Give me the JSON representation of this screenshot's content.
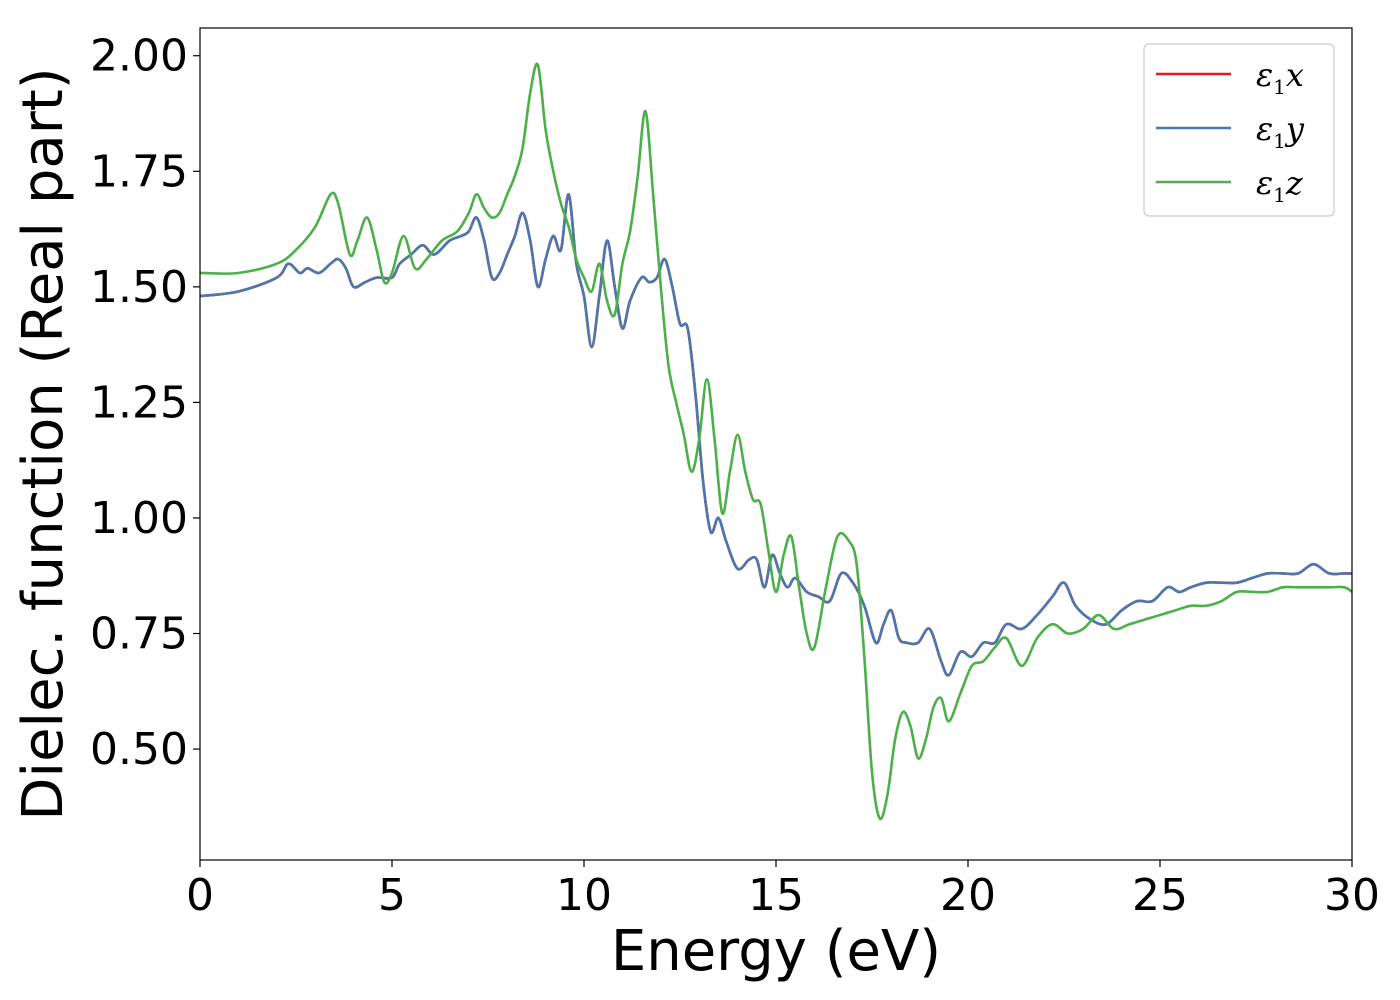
{
  "chart_data": {
    "type": "line",
    "xlabel": "Energy (eV)",
    "ylabel": "Dielec. function (Real part)",
    "xlim": [
      0,
      30
    ],
    "ylim": [
      0.26,
      2.06
    ],
    "xticks": [
      0,
      5,
      10,
      15,
      20,
      25,
      30
    ],
    "xtick_labels": [
      "0",
      "5",
      "10",
      "15",
      "20",
      "25",
      "30"
    ],
    "yticks": [
      0.5,
      0.75,
      1.0,
      1.25,
      1.5,
      1.75,
      2.0
    ],
    "ytick_labels": [
      "0.50",
      "0.75",
      "1.00",
      "1.25",
      "1.50",
      "1.75",
      "2.00"
    ],
    "grid": false,
    "legend": {
      "placement": "top-right",
      "entries": [
        {
          "symbol": "ε",
          "sub": "1",
          "var": "x",
          "color": "#e41a1c"
        },
        {
          "symbol": "ε",
          "sub": "1",
          "var": "y",
          "color": "#4a77b0"
        },
        {
          "symbol": "ε",
          "sub": "1",
          "var": "z",
          "color": "#4daf4a"
        }
      ]
    },
    "series": [
      {
        "color": "#e41a1c",
        "x": [
          0,
          1,
          2,
          2.3,
          2.6,
          2.8,
          3.1,
          3.4,
          3.6,
          3.8,
          4.0,
          4.3,
          4.6,
          5.0,
          5.2,
          5.5,
          5.8,
          6.1,
          6.5,
          6.8,
          7.0,
          7.2,
          7.4,
          7.6,
          7.8,
          8.0,
          8.2,
          8.4,
          8.6,
          8.8,
          9.0,
          9.2,
          9.4,
          9.6,
          9.8,
          10.0,
          10.2,
          10.4,
          10.6,
          10.8,
          11.0,
          11.2,
          11.5,
          11.7,
          11.9,
          12.1,
          12.3,
          12.5,
          12.7,
          12.9,
          13.1,
          13.3,
          13.5,
          13.7,
          14.0,
          14.3,
          14.5,
          14.7,
          14.9,
          15.1,
          15.3,
          15.5,
          15.8,
          16.1,
          16.4,
          16.7,
          17.0,
          17.3,
          17.6,
          17.8,
          18.0,
          18.2,
          18.4,
          18.7,
          19.0,
          19.3,
          19.5,
          19.8,
          20.1,
          20.4,
          20.7,
          21.0,
          21.4,
          21.8,
          22.2,
          22.5,
          22.8,
          23.2,
          23.6,
          24.0,
          24.4,
          24.8,
          25.2,
          25.5,
          25.8,
          26.2,
          26.6,
          27.0,
          27.4,
          27.8,
          28.2,
          28.6,
          29.0,
          29.4,
          29.8,
          30.0
        ],
        "values": [
          1.48,
          1.49,
          1.52,
          1.55,
          1.53,
          1.54,
          1.53,
          1.55,
          1.56,
          1.54,
          1.5,
          1.51,
          1.52,
          1.52,
          1.55,
          1.57,
          1.59,
          1.57,
          1.6,
          1.61,
          1.62,
          1.65,
          1.6,
          1.52,
          1.53,
          1.57,
          1.61,
          1.66,
          1.6,
          1.5,
          1.56,
          1.61,
          1.58,
          1.7,
          1.55,
          1.48,
          1.37,
          1.48,
          1.6,
          1.5,
          1.41,
          1.47,
          1.52,
          1.51,
          1.52,
          1.56,
          1.5,
          1.42,
          1.41,
          1.27,
          1.08,
          0.97,
          1.0,
          0.95,
          0.89,
          0.91,
          0.91,
          0.85,
          0.92,
          0.88,
          0.85,
          0.87,
          0.84,
          0.83,
          0.82,
          0.88,
          0.86,
          0.81,
          0.73,
          0.77,
          0.8,
          0.74,
          0.73,
          0.73,
          0.76,
          0.69,
          0.66,
          0.71,
          0.7,
          0.73,
          0.73,
          0.77,
          0.76,
          0.79,
          0.83,
          0.86,
          0.81,
          0.78,
          0.77,
          0.8,
          0.82,
          0.82,
          0.85,
          0.84,
          0.85,
          0.86,
          0.86,
          0.86,
          0.87,
          0.88,
          0.88,
          0.88,
          0.9,
          0.88,
          0.88,
          0.88
        ]
      },
      {
        "color": "#4a77b0",
        "x": [
          0,
          1,
          2,
          2.3,
          2.6,
          2.8,
          3.1,
          3.4,
          3.6,
          3.8,
          4.0,
          4.3,
          4.6,
          5.0,
          5.2,
          5.5,
          5.8,
          6.1,
          6.5,
          6.8,
          7.0,
          7.2,
          7.4,
          7.6,
          7.8,
          8.0,
          8.2,
          8.4,
          8.6,
          8.8,
          9.0,
          9.2,
          9.4,
          9.6,
          9.8,
          10.0,
          10.2,
          10.4,
          10.6,
          10.8,
          11.0,
          11.2,
          11.5,
          11.7,
          11.9,
          12.1,
          12.3,
          12.5,
          12.7,
          12.9,
          13.1,
          13.3,
          13.5,
          13.7,
          14.0,
          14.3,
          14.5,
          14.7,
          14.9,
          15.1,
          15.3,
          15.5,
          15.8,
          16.1,
          16.4,
          16.7,
          17.0,
          17.3,
          17.6,
          17.8,
          18.0,
          18.2,
          18.4,
          18.7,
          19.0,
          19.3,
          19.5,
          19.8,
          20.1,
          20.4,
          20.7,
          21.0,
          21.4,
          21.8,
          22.2,
          22.5,
          22.8,
          23.2,
          23.6,
          24.0,
          24.4,
          24.8,
          25.2,
          25.5,
          25.8,
          26.2,
          26.6,
          27.0,
          27.4,
          27.8,
          28.2,
          28.6,
          29.0,
          29.4,
          29.8,
          30.0
        ],
        "values": [
          1.48,
          1.49,
          1.52,
          1.55,
          1.53,
          1.54,
          1.53,
          1.55,
          1.56,
          1.54,
          1.5,
          1.51,
          1.52,
          1.52,
          1.55,
          1.57,
          1.59,
          1.57,
          1.6,
          1.61,
          1.62,
          1.65,
          1.6,
          1.52,
          1.53,
          1.57,
          1.61,
          1.66,
          1.6,
          1.5,
          1.56,
          1.61,
          1.58,
          1.7,
          1.55,
          1.48,
          1.37,
          1.48,
          1.6,
          1.5,
          1.41,
          1.47,
          1.52,
          1.51,
          1.52,
          1.56,
          1.5,
          1.42,
          1.41,
          1.27,
          1.08,
          0.97,
          1.0,
          0.95,
          0.89,
          0.91,
          0.91,
          0.85,
          0.92,
          0.88,
          0.85,
          0.87,
          0.84,
          0.83,
          0.82,
          0.88,
          0.86,
          0.81,
          0.73,
          0.77,
          0.8,
          0.74,
          0.73,
          0.73,
          0.76,
          0.69,
          0.66,
          0.71,
          0.7,
          0.73,
          0.73,
          0.77,
          0.76,
          0.79,
          0.83,
          0.86,
          0.81,
          0.78,
          0.77,
          0.8,
          0.82,
          0.82,
          0.85,
          0.84,
          0.85,
          0.86,
          0.86,
          0.86,
          0.87,
          0.88,
          0.88,
          0.88,
          0.9,
          0.88,
          0.88,
          0.88
        ]
      },
      {
        "color": "#4daf4a",
        "x": [
          0,
          1,
          2,
          2.5,
          3.0,
          3.4,
          3.6,
          3.9,
          4.1,
          4.35,
          4.6,
          4.8,
          5.0,
          5.3,
          5.6,
          5.9,
          6.3,
          6.7,
          7.0,
          7.2,
          7.4,
          7.6,
          7.8,
          8.0,
          8.2,
          8.4,
          8.6,
          8.8,
          9.0,
          9.2,
          9.4,
          9.6,
          9.8,
          10.0,
          10.2,
          10.4,
          10.6,
          10.8,
          11.0,
          11.2,
          11.4,
          11.6,
          11.8,
          12.0,
          12.2,
          12.4,
          12.6,
          12.8,
          13.0,
          13.2,
          13.4,
          13.6,
          13.8,
          14.0,
          14.2,
          14.4,
          14.6,
          14.8,
          15.0,
          15.2,
          15.4,
          15.6,
          15.8,
          16.0,
          16.3,
          16.6,
          16.9,
          17.1,
          17.3,
          17.5,
          17.7,
          17.9,
          18.1,
          18.3,
          18.5,
          18.7,
          18.9,
          19.1,
          19.3,
          19.5,
          19.8,
          20.1,
          20.4,
          20.7,
          21.0,
          21.4,
          21.8,
          22.2,
          22.6,
          23.0,
          23.4,
          23.8,
          24.2,
          24.6,
          25.0,
          25.4,
          25.8,
          26.2,
          26.6,
          27.0,
          27.4,
          27.8,
          28.2,
          28.6,
          29.0,
          29.4,
          29.8,
          30.0
        ],
        "values": [
          1.53,
          1.53,
          1.55,
          1.58,
          1.63,
          1.7,
          1.68,
          1.57,
          1.6,
          1.65,
          1.58,
          1.51,
          1.53,
          1.61,
          1.54,
          1.56,
          1.6,
          1.62,
          1.66,
          1.7,
          1.67,
          1.65,
          1.66,
          1.7,
          1.74,
          1.8,
          1.92,
          1.98,
          1.84,
          1.75,
          1.68,
          1.63,
          1.56,
          1.52,
          1.49,
          1.55,
          1.47,
          1.44,
          1.55,
          1.62,
          1.74,
          1.88,
          1.7,
          1.5,
          1.33,
          1.25,
          1.18,
          1.1,
          1.17,
          1.3,
          1.17,
          1.01,
          1.1,
          1.18,
          1.1,
          1.04,
          1.03,
          0.93,
          0.84,
          0.92,
          0.96,
          0.85,
          0.75,
          0.72,
          0.85,
          0.96,
          0.95,
          0.9,
          0.7,
          0.45,
          0.35,
          0.4,
          0.52,
          0.58,
          0.55,
          0.48,
          0.52,
          0.59,
          0.61,
          0.56,
          0.62,
          0.68,
          0.69,
          0.72,
          0.74,
          0.68,
          0.74,
          0.77,
          0.75,
          0.76,
          0.79,
          0.76,
          0.77,
          0.78,
          0.79,
          0.8,
          0.81,
          0.81,
          0.82,
          0.84,
          0.84,
          0.84,
          0.85,
          0.85,
          0.85,
          0.85,
          0.85,
          0.84
        ]
      }
    ]
  }
}
